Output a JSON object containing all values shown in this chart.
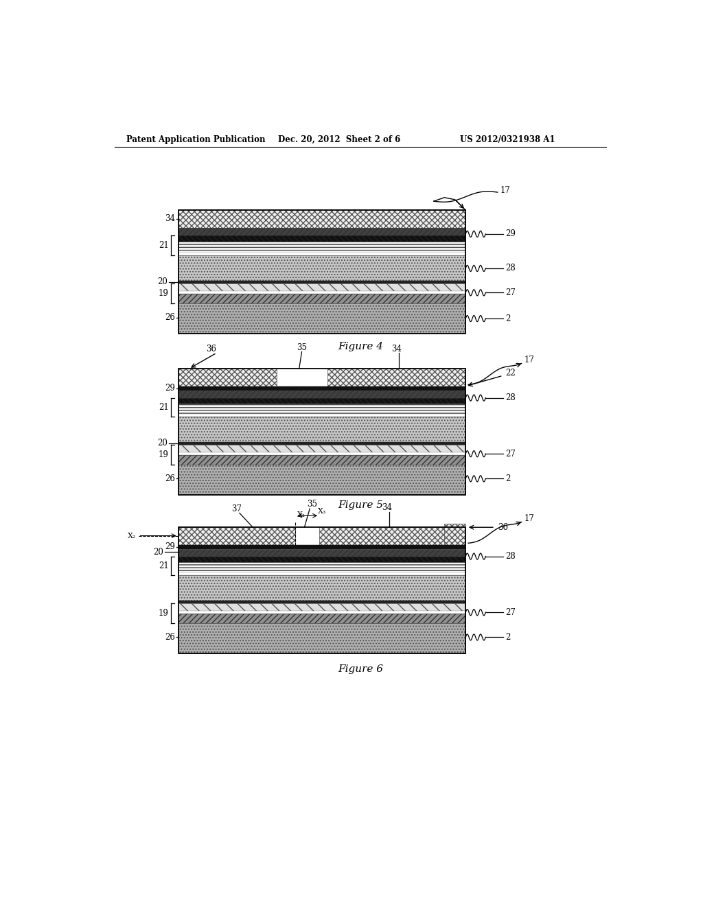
{
  "header_left": "Patent Application Publication",
  "header_mid": "Dec. 20, 2012  Sheet 2 of 6",
  "header_right": "US 2012/0321938 A1",
  "fig4_caption": "Figure 4",
  "fig5_caption": "Figure 5",
  "fig6_caption": "Figure 6",
  "bg_color": "#ffffff"
}
